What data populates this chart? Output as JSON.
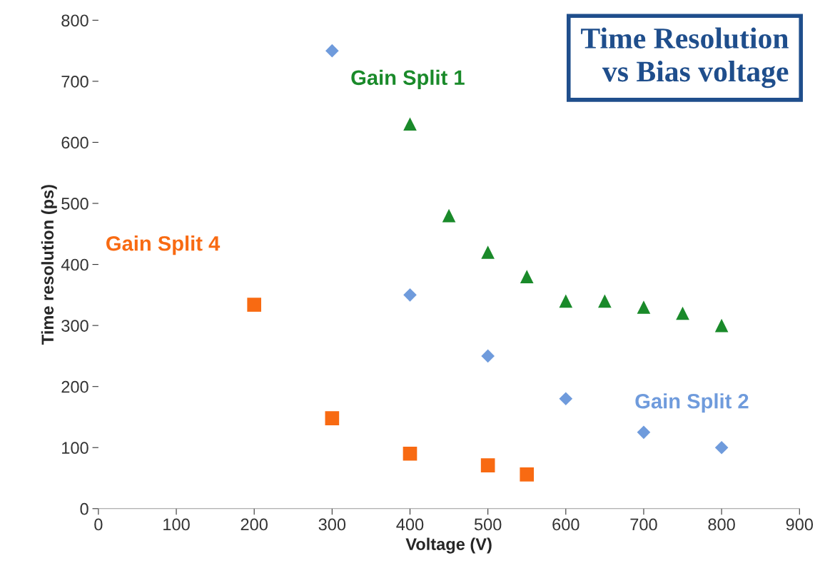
{
  "chart_data": {
    "type": "scatter",
    "title": "Time Resolution\nvs Bias voltage",
    "xlabel": "Voltage (V)",
    "ylabel": "Time resolution (ps)",
    "xlim": [
      0,
      900
    ],
    "xticks": [
      0,
      100,
      200,
      300,
      400,
      500,
      600,
      700,
      800,
      900
    ],
    "ylim": [
      0,
      800
    ],
    "yticks": [
      0,
      100,
      200,
      300,
      400,
      500,
      600,
      700,
      800
    ],
    "grid": false,
    "legend": false,
    "series": [
      {
        "name": "Gain Split 1",
        "color": "#1a8a2a",
        "marker": "triangle",
        "x": [
          400,
          450,
          500,
          550,
          600,
          650,
          700,
          750,
          800
        ],
        "values": [
          630,
          480,
          420,
          380,
          340,
          340,
          330,
          320,
          300
        ]
      },
      {
        "name": "Gain Split 2",
        "color": "#6f9bdc",
        "marker": "diamond",
        "x": [
          300,
          400,
          500,
          600,
          700,
          800
        ],
        "values": [
          750,
          350,
          250,
          180,
          125,
          100
        ]
      },
      {
        "name": "Gain Split 4",
        "color": "#f86a12",
        "marker": "square",
        "x": [
          200,
          300,
          400,
          500,
          550
        ],
        "values": [
          334,
          148,
          90,
          71,
          56
        ]
      }
    ]
  }
}
